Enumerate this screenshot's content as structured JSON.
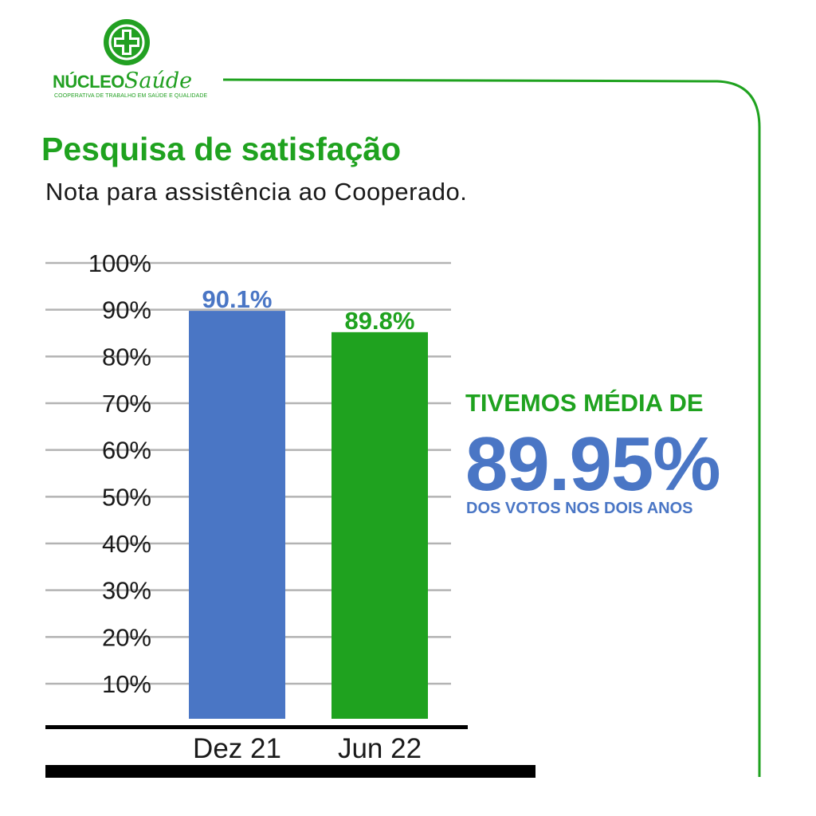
{
  "brand": {
    "name_part1": "NÚCLEO",
    "name_part2": "Saúde",
    "tagline": "COOPERATIVA DE TRABALHO EM SAÚDE E QUALIDADE",
    "color": "#22a022"
  },
  "header": {
    "title": "Pesquisa de satisfação",
    "subtitle": "Nota para assistência ao Cooperado."
  },
  "highlight": {
    "lead": "TIVEMOS MÉDIA DE",
    "value": "89.95%",
    "trail": "DOS VOTOS NOS DOIS ANOS"
  },
  "colors": {
    "green": "#1fa21f",
    "blue": "#4a76c5",
    "grid": "#b3b3b3",
    "axis": "#000000"
  },
  "chart_data": {
    "type": "bar",
    "categories": [
      "Dez 21",
      "Jun 22"
    ],
    "values": [
      90.1,
      89.8
    ],
    "value_labels": [
      "90.1%",
      "89.8%"
    ],
    "bar_colors": [
      "#4a76c5",
      "#1fa21f"
    ],
    "label_colors": [
      "#4a76c5",
      "#1fa21f"
    ],
    "yticks": [
      "10%",
      "20%",
      "30%",
      "40%",
      "50%",
      "60%",
      "70%",
      "80%",
      "90%",
      "100%"
    ],
    "ylim": [
      0,
      100
    ],
    "grid": true,
    "legend": false
  }
}
